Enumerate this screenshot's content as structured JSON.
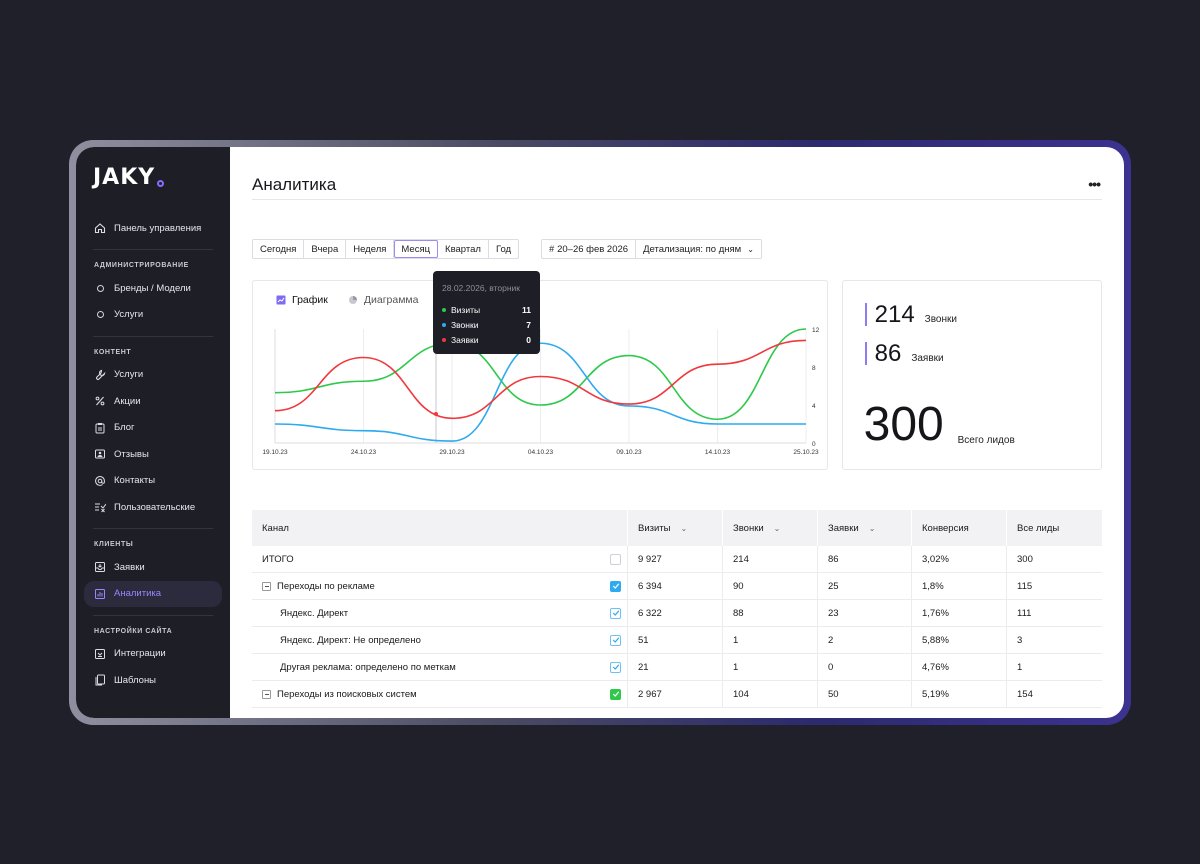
{
  "brand": {
    "name": "JAKY",
    "accent": "#8a6cff"
  },
  "sidebar": {
    "top": [
      {
        "label": "Панель управления",
        "icon": "home-icon"
      }
    ],
    "sections": [
      {
        "title": "АДМИНИСТРИРОВАНИЕ",
        "items": [
          {
            "label": "Бренды / Модели",
            "icon": "circle-icon"
          },
          {
            "label": "Услуги",
            "icon": "circle-icon"
          }
        ]
      },
      {
        "title": "КОНТЕНТ",
        "items": [
          {
            "label": "Услуги",
            "icon": "wrench-icon"
          },
          {
            "label": "Акции",
            "icon": "percent-icon"
          },
          {
            "label": "Блог",
            "icon": "clipboard-icon"
          },
          {
            "label": "Отзывы",
            "icon": "review-icon"
          },
          {
            "label": "Контакты",
            "icon": "at-icon"
          },
          {
            "label": "Пользовательские",
            "icon": "list-check-icon"
          }
        ]
      },
      {
        "title": "КЛИЕНТЫ",
        "items": [
          {
            "label": "Заявки",
            "icon": "inbox-icon"
          },
          {
            "label": "Аналитика",
            "icon": "analytics-icon",
            "active": true
          }
        ]
      },
      {
        "title": "НАСТРОЙКИ САЙТА",
        "items": [
          {
            "label": "Интеграции",
            "icon": "integration-icon"
          },
          {
            "label": "Шаблоны",
            "icon": "templates-icon"
          }
        ]
      }
    ]
  },
  "header": {
    "title": "Аналитика",
    "more": "•••"
  },
  "filters": {
    "periods": [
      "Сегодня",
      "Вчера",
      "Неделя",
      "Месяц",
      "Квартал",
      "Год"
    ],
    "active_period": "Месяц",
    "date_range": "20–26 фев 2026",
    "detail": "Детализация: по дням"
  },
  "chart": {
    "tabs": {
      "graph": "График",
      "diagram": "Диаграмма"
    },
    "tooltip": {
      "title": "28.02.2026, вторник",
      "rows": [
        {
          "label": "Визиты",
          "value": "11",
          "color": "#2ec94a"
        },
        {
          "label": "Звонки",
          "value": "7",
          "color": "#2eaaf0"
        },
        {
          "label": "Заявки",
          "value": "0",
          "color": "#f0383d"
        }
      ]
    }
  },
  "chart_data": {
    "type": "line",
    "x": [
      "19.10.23",
      "24.10.23",
      "29.10.23",
      "04.10.23",
      "09.10.23",
      "14.10.23",
      "25.10.23"
    ],
    "ylim": [
      0,
      12
    ],
    "yticks": [
      "12",
      "8",
      "4",
      "0"
    ],
    "series": [
      {
        "name": "Визиты",
        "color": "#2ec94a",
        "values": [
          5.3,
          6.5,
          10.5,
          4.0,
          9.2,
          2.5,
          12.0
        ]
      },
      {
        "name": "Звонки",
        "color": "#2eaaf0",
        "values": [
          2.0,
          1.3,
          0.2,
          10.5,
          3.9,
          2.0,
          2.0
        ]
      },
      {
        "name": "Заявки",
        "color": "#f0383d",
        "values": [
          3.4,
          9.0,
          2.6,
          7.0,
          4.1,
          8.3,
          10.8
        ]
      }
    ]
  },
  "stats": {
    "calls": {
      "value": "214",
      "label": "Звонки"
    },
    "requests": {
      "value": "86",
      "label": "Заявки"
    },
    "total": {
      "value": "300",
      "label": "Всего лидов"
    }
  },
  "table": {
    "columns": [
      "Канал",
      "Визиты",
      "Звонки",
      "Заявки",
      "Конверсия",
      "Все лиды"
    ],
    "rows": [
      {
        "name": "ИТОГО",
        "level": 0,
        "expand": false,
        "check": "empty",
        "cells": [
          "9 927",
          "214",
          "86",
          "3,02%",
          "300"
        ]
      },
      {
        "name": "Переходы по рекламе",
        "level": 0,
        "expand": true,
        "check": "blue",
        "cells": [
          "6 394",
          "90",
          "25",
          "1,8%",
          "115"
        ]
      },
      {
        "name": "Яндекс. Директ",
        "level": 1,
        "expand": false,
        "check": "outline",
        "cells": [
          "6 322",
          "88",
          "23",
          "1,76%",
          "111"
        ]
      },
      {
        "name": "Яндекс. Директ: Не определено",
        "level": 1,
        "expand": false,
        "check": "outline",
        "cells": [
          "51",
          "1",
          "2",
          "5,88%",
          "3"
        ]
      },
      {
        "name": "Другая реклама: определено по меткам",
        "level": 1,
        "expand": false,
        "check": "outline",
        "cells": [
          "21",
          "1",
          "0",
          "4,76%",
          "1"
        ]
      },
      {
        "name": "Переходы из поисковых систем",
        "level": 0,
        "expand": true,
        "check": "green",
        "cells": [
          "2 967",
          "104",
          "50",
          "5,19%",
          "154"
        ]
      }
    ]
  }
}
